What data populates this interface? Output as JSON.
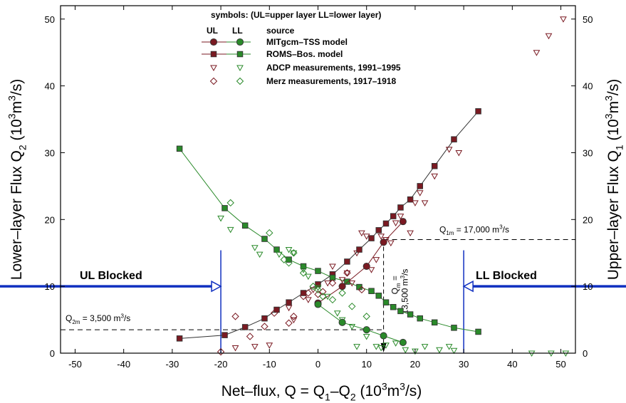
{
  "chart_data": {
    "type": "scatter",
    "xlabel_parts": [
      "Net–flux, Q = Q",
      "1",
      "–Q",
      "2",
      " (10",
      "3",
      "m",
      "3",
      "/s)"
    ],
    "ylabel_left_parts": [
      "Lower–layer Flux Q",
      "2",
      " (10",
      "3",
      "m",
      "3",
      "/s)"
    ],
    "ylabel_right_parts": [
      "Upper–layer Flux Q",
      "1",
      " (10",
      "3",
      "m",
      "3",
      "/s)"
    ],
    "xlim": [
      -53,
      53
    ],
    "ylim": [
      0,
      52
    ],
    "xticks": [
      -50,
      -40,
      -30,
      -20,
      -10,
      0,
      10,
      20,
      30,
      40,
      50
    ],
    "yticks": [
      0,
      10,
      20,
      30,
      40,
      50
    ],
    "legend": {
      "header": "symbols: (UL=upper layer LL=lower layer)",
      "col_ul": "UL",
      "col_ll": "LL",
      "col_source": "source",
      "entries": [
        {
          "label": "MITgcm–TSS model",
          "style": "line-circle"
        },
        {
          "label": "ROMS–Bos. model",
          "style": "line-square"
        },
        {
          "label": "ADCP measurements, 1991–1995",
          "style": "triangle"
        },
        {
          "label": "Merz measurements, 1917–1918",
          "style": "diamond"
        }
      ]
    },
    "colors": {
      "upper": "#7a1a22",
      "lower": "#2a8a2a",
      "marker_edge": "#333333",
      "blocked": "#1030c0",
      "dashed": "#000000"
    },
    "series": [
      {
        "name": "ROMS–Bos. model",
        "layer": "UL",
        "marker": "square",
        "line": true,
        "points": [
          [
            -28.5,
            2.2
          ],
          [
            -19.2,
            2.7
          ],
          [
            -15,
            3.9
          ],
          [
            -11,
            5.2
          ],
          [
            -8.5,
            6.5
          ],
          [
            -6,
            7.6
          ],
          [
            -3,
            9.0
          ],
          [
            0,
            10.3
          ],
          [
            3,
            11.8
          ],
          [
            6,
            13.7
          ],
          [
            8.5,
            15.5
          ],
          [
            11,
            17.2
          ],
          [
            12.5,
            18.4
          ],
          [
            14,
            19.4
          ],
          [
            15.5,
            20.5
          ],
          [
            17,
            21.8
          ],
          [
            19,
            23.0
          ],
          [
            21,
            25.0
          ],
          [
            24,
            28.0
          ],
          [
            28,
            32.0
          ],
          [
            33,
            36.2
          ]
        ]
      },
      {
        "name": "ROMS–Bos. model",
        "layer": "LL",
        "marker": "square",
        "line": true,
        "points": [
          [
            -28.5,
            30.6
          ],
          [
            -19.2,
            21.7
          ],
          [
            -15,
            19.1
          ],
          [
            -11,
            17.1
          ],
          [
            -8.5,
            15.5
          ],
          [
            -6,
            14.0
          ],
          [
            -3,
            13.0
          ],
          [
            0,
            12.3
          ],
          [
            3,
            11.3
          ],
          [
            6,
            10.7
          ],
          [
            8.5,
            9.9
          ],
          [
            11,
            9.3
          ],
          [
            12.5,
            8.6
          ],
          [
            14,
            7.6
          ],
          [
            15.5,
            6.9
          ],
          [
            17,
            6.3
          ],
          [
            19,
            5.8
          ],
          [
            21,
            5.2
          ],
          [
            24,
            4.6
          ],
          [
            28,
            3.8
          ],
          [
            33,
            3.2
          ]
        ]
      },
      {
        "name": "MITgcm–TSS model",
        "layer": "UL",
        "marker": "circle",
        "line": true,
        "points": [
          [
            0,
            7.5
          ],
          [
            5,
            10.0
          ],
          [
            10,
            13.0
          ],
          [
            13.5,
            16.6
          ],
          [
            17.5,
            19.7
          ]
        ]
      },
      {
        "name": "MITgcm–TSS model",
        "layer": "LL",
        "marker": "circle",
        "line": true,
        "points": [
          [
            0,
            7.3
          ],
          [
            5,
            4.6
          ],
          [
            10,
            3.5
          ],
          [
            13.5,
            2.6
          ],
          [
            17.5,
            1.6
          ]
        ]
      },
      {
        "name": "ADCP measurements, 1991–1995",
        "layer": "UL",
        "marker": "triangle",
        "line": false,
        "points": [
          [
            -17,
            0.8
          ],
          [
            -13,
            1.0
          ],
          [
            -10,
            1.2
          ],
          [
            -5,
            5.0
          ],
          [
            -6,
            6.8
          ],
          [
            -2,
            8.0
          ],
          [
            -1,
            9.5
          ],
          [
            2,
            10.5
          ],
          [
            3,
            13.0
          ],
          [
            5,
            11.0
          ],
          [
            6,
            12.0
          ],
          [
            7,
            10.5
          ],
          [
            8,
            15.0
          ],
          [
            9,
            18.0
          ],
          [
            10,
            17.5
          ],
          [
            11,
            12.5
          ],
          [
            12,
            14.0
          ],
          [
            13,
            17.5
          ],
          [
            14,
            17.0
          ],
          [
            15,
            16.5
          ],
          [
            16,
            19.5
          ],
          [
            17,
            20.5
          ],
          [
            19,
            18.0
          ],
          [
            20,
            22.5
          ],
          [
            21,
            24.0
          ],
          [
            22,
            22.5
          ],
          [
            24,
            26.5
          ],
          [
            27,
            30.5
          ],
          [
            29,
            30.0
          ],
          [
            45,
            45.0
          ],
          [
            47.5,
            47.5
          ],
          [
            50.5,
            50.0
          ]
        ]
      },
      {
        "name": "ADCP measurements, 1991–1995",
        "layer": "LL",
        "marker": "triangle",
        "line": false,
        "points": [
          [
            -20,
            20.2
          ],
          [
            -18,
            18.5
          ],
          [
            -13,
            15.8
          ],
          [
            -12,
            14.8
          ],
          [
            -8,
            14.8
          ],
          [
            -6,
            15.5
          ],
          [
            -5,
            15.0
          ],
          [
            -3,
            12.5
          ],
          [
            -2,
            11.5
          ],
          [
            0,
            9.8
          ],
          [
            2,
            8.5
          ],
          [
            4,
            6.0
          ],
          [
            5,
            5.0
          ],
          [
            7,
            4.0
          ],
          [
            8,
            1.0
          ],
          [
            10,
            2.5
          ],
          [
            12,
            1.0
          ],
          [
            13,
            0.8
          ],
          [
            14,
            1.2
          ],
          [
            16,
            1.5
          ],
          [
            18,
            0.5
          ],
          [
            20,
            0.3
          ],
          [
            22,
            1.0
          ],
          [
            25,
            0.5
          ],
          [
            27,
            1.0
          ],
          [
            28,
            0.4
          ],
          [
            44,
            0.0
          ],
          [
            48,
            0.0
          ],
          [
            51,
            0.0
          ]
        ]
      },
      {
        "name": "Merz measurements, 1917–1918",
        "layer": "UL",
        "marker": "diamond",
        "line": false,
        "points": [
          [
            -20,
            0.2
          ],
          [
            -17,
            5.5
          ],
          [
            -14,
            2.5
          ],
          [
            -11,
            4.0
          ],
          [
            -9,
            6.0
          ],
          [
            -6,
            4.5
          ],
          [
            -5,
            5.5
          ],
          [
            -3,
            8.5
          ],
          [
            -2,
            9.0
          ],
          [
            0,
            8.8
          ],
          [
            1,
            9.2
          ],
          [
            3,
            10.5
          ],
          [
            6,
            12.0
          ],
          [
            9,
            9.5
          ]
        ]
      },
      {
        "name": "Merz measurements, 1917–1918",
        "layer": "LL",
        "marker": "diamond",
        "line": false,
        "points": [
          [
            -18,
            22.5
          ],
          [
            -10,
            18.0
          ],
          [
            -7,
            14.0
          ],
          [
            -5,
            15.0
          ],
          [
            -6,
            13.5
          ],
          [
            -3,
            12.0
          ],
          [
            -1,
            10.0
          ],
          [
            0,
            9.5
          ],
          [
            1,
            8.5
          ],
          [
            3,
            8.0
          ],
          [
            5,
            9.0
          ],
          [
            7,
            7.0
          ],
          [
            10,
            5.5
          ]
        ]
      }
    ],
    "annotations": {
      "q1m_main": "Q",
      "q1m_sub": "1m",
      "q1m_rest": " = 17,000 m",
      "q1m_sup": "3",
      "q1m_tail": "/s",
      "q1m_y": 17.0,
      "q2m_main": "Q",
      "q2m_sub": "2m",
      "q2m_rest": " = 3,500 m",
      "q2m_sup": "3",
      "q2m_tail": "/s",
      "q2m_y": 3.5,
      "qm_line1": "Q",
      "qm_sub": "m",
      "qm_eq": " =",
      "qm_line2": "13,500 m",
      "qm_sup": "3",
      "qm_tail": "/s",
      "qm_x": 13.5,
      "ul_blocked": "UL Blocked",
      "ul_x": -20,
      "ll_blocked": "LL Blocked",
      "ll_x": 30
    }
  }
}
